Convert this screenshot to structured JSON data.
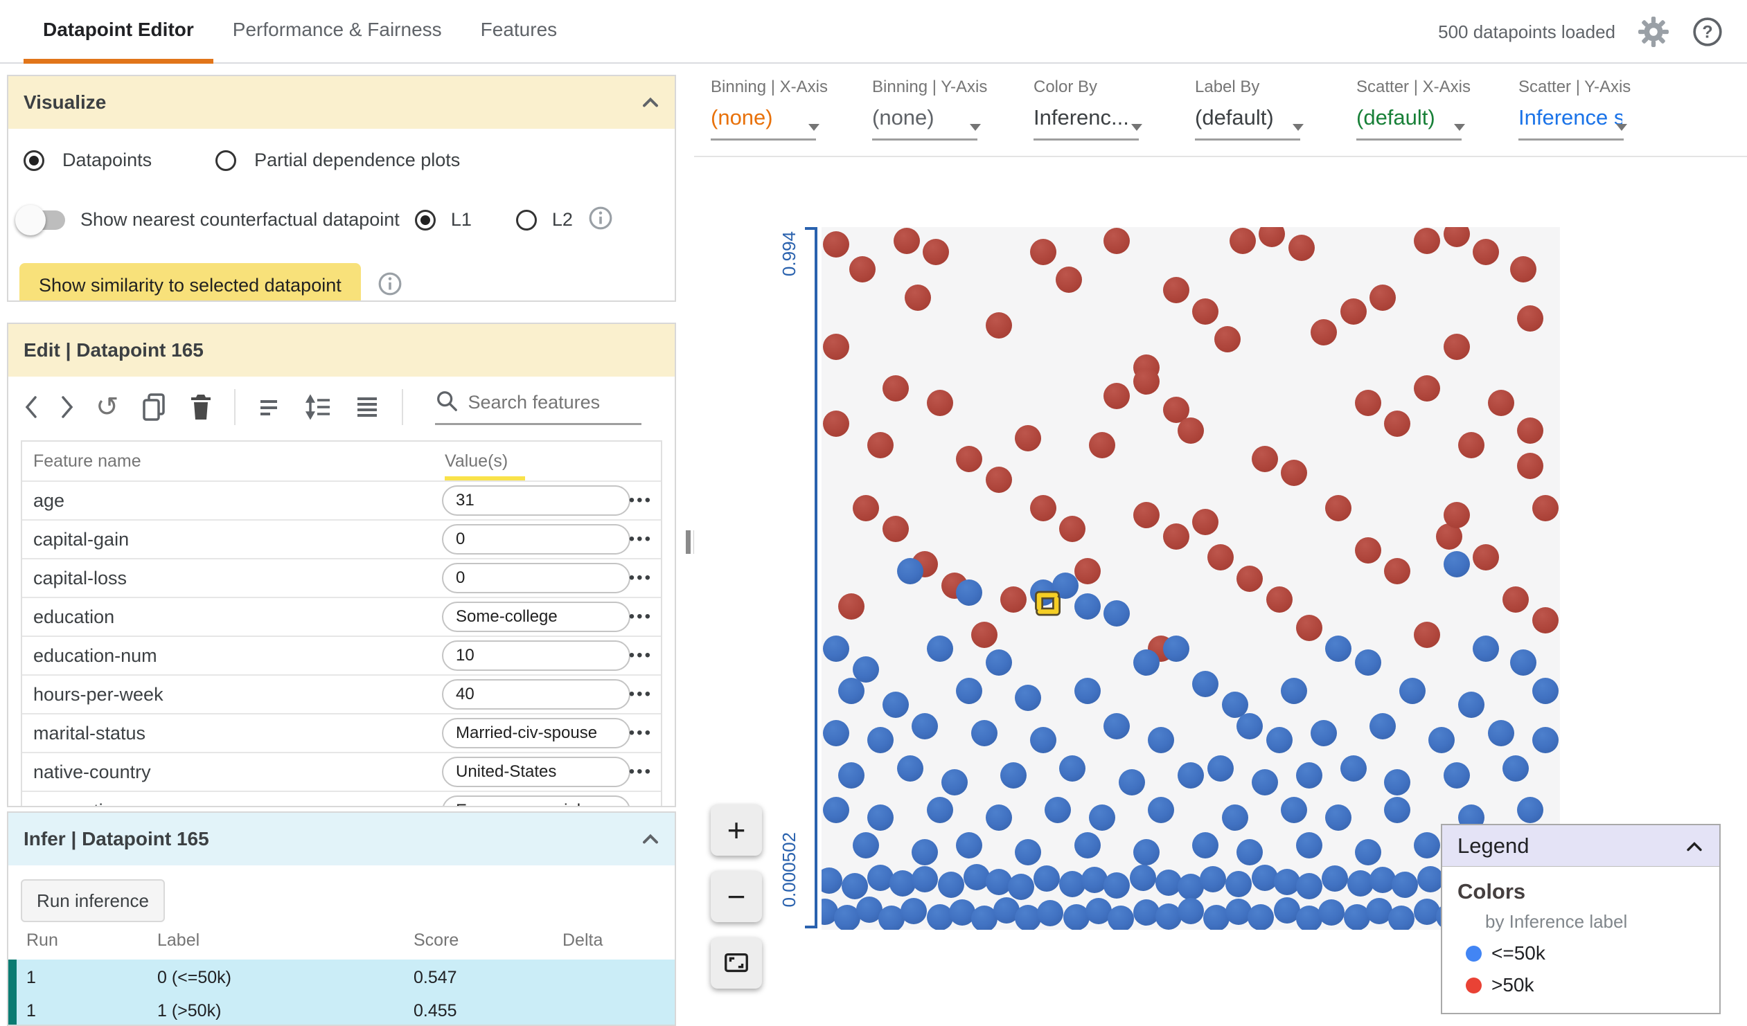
{
  "header": {
    "tabs": [
      "Datapoint Editor",
      "Performance & Fairness",
      "Features"
    ],
    "status": "500 datapoints loaded",
    "accent_color": "#E1751A"
  },
  "visualize": {
    "title": "Visualize",
    "radio_datapoints": "Datapoints",
    "radio_pdp": "Partial dependence plots",
    "toggle_label": "Show nearest counterfactual datapoint",
    "l1": "L1",
    "l2": "L2",
    "similarity_button": "Show similarity to selected datapoint"
  },
  "edit": {
    "title": "Edit | Datapoint 165",
    "search_placeholder": "Search features",
    "col_feature": "Feature name",
    "col_values": "Value(s)",
    "features": [
      {
        "name": "age",
        "value": "31"
      },
      {
        "name": "capital-gain",
        "value": "0"
      },
      {
        "name": "capital-loss",
        "value": "0"
      },
      {
        "name": "education",
        "value": "Some-college"
      },
      {
        "name": "education-num",
        "value": "10"
      },
      {
        "name": "hours-per-week",
        "value": "40"
      },
      {
        "name": "marital-status",
        "value": "Married-civ-spouse"
      },
      {
        "name": "native-country",
        "value": "United-States"
      },
      {
        "name": "occupation",
        "value": "Exec-managerial"
      }
    ]
  },
  "infer": {
    "title": "Infer | Datapoint 165",
    "run_button": "Run inference",
    "columns": [
      "Run",
      "Label",
      "Score",
      "Delta"
    ],
    "rows": [
      [
        "1",
        "0 (<=50k)",
        "0.547",
        ""
      ],
      [
        "1",
        "1 (>50k)",
        "0.455",
        ""
      ]
    ],
    "row_bg": "#CBEDF7",
    "row_bar": "#0A7B72"
  },
  "controls": [
    {
      "label": "Binning | X-Axis",
      "value": "(none)",
      "color": "#E8710A"
    },
    {
      "label": "Binning | Y-Axis",
      "value": "(none)",
      "color": "#5F6368"
    },
    {
      "label": "Color By",
      "value": "Inferenc...",
      "color": "#3C4043"
    },
    {
      "label": "Label By",
      "value": "(default)",
      "color": "#3C4043"
    },
    {
      "label": "Scatter | X-Axis",
      "value": "(default)",
      "color": "#188038"
    },
    {
      "label": "Scatter | Y-Axis",
      "value": "Inference s",
      "color": "#1A73E8"
    }
  ],
  "zoom": {
    "in_label": "+",
    "out_label": "−"
  },
  "legend": {
    "title": "Legend",
    "section": "Colors",
    "subtitle": "by Inference label",
    "items": [
      {
        "label": "<=50k",
        "color": "#4285F4"
      },
      {
        "label": ">50k",
        "color": "#E94235"
      }
    ]
  },
  "chart_data": {
    "type": "scatter",
    "y_axis": {
      "top": "0.994",
      "bottom": "0.000502"
    },
    "plot_bg": "#F5F5F6",
    "axis_color": "#2A62AE",
    "selected_point": {
      "x_pct": 30.6,
      "y_pct": 53.7
    },
    "series": [
      {
        "name": ">50k",
        "cls": "dot-red",
        "color": "#B0473D",
        "points": [
          [
            2,
            2.5
          ],
          [
            5.5,
            6
          ],
          [
            11.5,
            2
          ],
          [
            15.5,
            3.5
          ],
          [
            30,
            3.5
          ],
          [
            33.5,
            7.5
          ],
          [
            40,
            2
          ],
          [
            57,
            2
          ],
          [
            61,
            1
          ],
          [
            65,
            3
          ],
          [
            82,
            2
          ],
          [
            86,
            1
          ],
          [
            90,
            3.5
          ],
          [
            95,
            6
          ],
          [
            13,
            10
          ],
          [
            24,
            14
          ],
          [
            48,
            9
          ],
          [
            52,
            12
          ],
          [
            55,
            16
          ],
          [
            72,
            12
          ],
          [
            76,
            10
          ],
          [
            96,
            13
          ],
          [
            2,
            17
          ],
          [
            44,
            20
          ],
          [
            68,
            15
          ],
          [
            86,
            17
          ],
          [
            8,
            31
          ],
          [
            10,
            23
          ],
          [
            16,
            25
          ],
          [
            38,
            31
          ],
          [
            40,
            24
          ],
          [
            44,
            22
          ],
          [
            48,
            26
          ],
          [
            2,
            28
          ],
          [
            28,
            30
          ],
          [
            50,
            29
          ],
          [
            74,
            25
          ],
          [
            78,
            28
          ],
          [
            82,
            23
          ],
          [
            88,
            31
          ],
          [
            92,
            25
          ],
          [
            96,
            29
          ],
          [
            20,
            33
          ],
          [
            24,
            36
          ],
          [
            60,
            33
          ],
          [
            64,
            35
          ],
          [
            96,
            34
          ],
          [
            6,
            40
          ],
          [
            10,
            43
          ],
          [
            30,
            40
          ],
          [
            34,
            43
          ],
          [
            44,
            41
          ],
          [
            48,
            44
          ],
          [
            52,
            42
          ],
          [
            70,
            40
          ],
          [
            85,
            44
          ],
          [
            86,
            41
          ],
          [
            98,
            40
          ],
          [
            14,
            48
          ],
          [
            18,
            51
          ],
          [
            36,
            49
          ],
          [
            54,
            47
          ],
          [
            58,
            50
          ],
          [
            74,
            46
          ],
          [
            78,
            49
          ],
          [
            90,
            47
          ],
          [
            4,
            54
          ],
          [
            26,
            53
          ],
          [
            62,
            53
          ],
          [
            94,
            53
          ],
          [
            22,
            58
          ],
          [
            46,
            60
          ],
          [
            66,
            57
          ],
          [
            82,
            58
          ],
          [
            98,
            56
          ]
        ]
      },
      {
        "name": "<=50k",
        "cls": "dot-blue",
        "color": "#4172C2",
        "points": [
          [
            12,
            49
          ],
          [
            20,
            52
          ],
          [
            30,
            52
          ],
          [
            33,
            51
          ],
          [
            36,
            54
          ],
          [
            40,
            55
          ],
          [
            86,
            48
          ],
          [
            2,
            60
          ],
          [
            6,
            63
          ],
          [
            16,
            60
          ],
          [
            24,
            62
          ],
          [
            44,
            62
          ],
          [
            48,
            60
          ],
          [
            70,
            60
          ],
          [
            74,
            62
          ],
          [
            90,
            60
          ],
          [
            95,
            62
          ],
          [
            4,
            66
          ],
          [
            10,
            68
          ],
          [
            20,
            66
          ],
          [
            28,
            67
          ],
          [
            36,
            66
          ],
          [
            52,
            65
          ],
          [
            56,
            68
          ],
          [
            64,
            66
          ],
          [
            80,
            66
          ],
          [
            88,
            68
          ],
          [
            98,
            66
          ],
          [
            2,
            72
          ],
          [
            8,
            73
          ],
          [
            14,
            71
          ],
          [
            22,
            72
          ],
          [
            30,
            73
          ],
          [
            40,
            71
          ],
          [
            46,
            73
          ],
          [
            58,
            71
          ],
          [
            62,
            73
          ],
          [
            68,
            72
          ],
          [
            76,
            71
          ],
          [
            84,
            73
          ],
          [
            92,
            72
          ],
          [
            98,
            73
          ],
          [
            4,
            78
          ],
          [
            12,
            77
          ],
          [
            18,
            79
          ],
          [
            26,
            78
          ],
          [
            34,
            77
          ],
          [
            42,
            79
          ],
          [
            50,
            78
          ],
          [
            54,
            77
          ],
          [
            60,
            79
          ],
          [
            66,
            78
          ],
          [
            72,
            77
          ],
          [
            78,
            79
          ],
          [
            86,
            78
          ],
          [
            94,
            77
          ],
          [
            2,
            83
          ],
          [
            8,
            84
          ],
          [
            16,
            83
          ],
          [
            24,
            84
          ],
          [
            32,
            83
          ],
          [
            38,
            84
          ],
          [
            46,
            83
          ],
          [
            56,
            84
          ],
          [
            64,
            83
          ],
          [
            70,
            84
          ],
          [
            78,
            83
          ],
          [
            88,
            84
          ],
          [
            96,
            83
          ],
          [
            6,
            88
          ],
          [
            14,
            89
          ],
          [
            20,
            88
          ],
          [
            28,
            89
          ],
          [
            36,
            88
          ],
          [
            44,
            89
          ],
          [
            52,
            88
          ],
          [
            58,
            89
          ],
          [
            66,
            88
          ],
          [
            74,
            89
          ],
          [
            82,
            88
          ],
          [
            90,
            89
          ],
          [
            98,
            88
          ],
          [
            1,
            93
          ],
          [
            4.5,
            93.8
          ],
          [
            8,
            92.6
          ],
          [
            11,
            93.4
          ],
          [
            14,
            92.8
          ],
          [
            17.5,
            93.6
          ],
          [
            21,
            92.5
          ],
          [
            24,
            93.2
          ],
          [
            27,
            93.9
          ],
          [
            30.5,
            92.7
          ],
          [
            34,
            93.5
          ],
          [
            37,
            92.9
          ],
          [
            40,
            93.7
          ],
          [
            43.5,
            92.6
          ],
          [
            47,
            93.3
          ],
          [
            50,
            93.9
          ],
          [
            53,
            92.8
          ],
          [
            56.5,
            93.5
          ],
          [
            60,
            92.6
          ],
          [
            63,
            93.2
          ],
          [
            66,
            93.8
          ],
          [
            69.5,
            92.7
          ],
          [
            73,
            93.4
          ],
          [
            76,
            92.9
          ],
          [
            79,
            93.6
          ],
          [
            82.5,
            92.8
          ],
          [
            86,
            93.3
          ],
          [
            89,
            93.9
          ],
          [
            92,
            92.7
          ],
          [
            95.5,
            93.4
          ],
          [
            99,
            93
          ],
          [
            0.5,
            97.4
          ],
          [
            3.5,
            98.3
          ],
          [
            6.5,
            97.1
          ],
          [
            9.5,
            98.4
          ],
          [
            12.5,
            97.3
          ],
          [
            16,
            98.2
          ],
          [
            19,
            97.5
          ],
          [
            22,
            98.4
          ],
          [
            25,
            97.2
          ],
          [
            28,
            98.3
          ],
          [
            31,
            97.6
          ],
          [
            34.5,
            98.2
          ],
          [
            37.5,
            97.3
          ],
          [
            40.5,
            98.4
          ],
          [
            44,
            97.5
          ],
          [
            47,
            98.1
          ],
          [
            50,
            97.3
          ],
          [
            53.5,
            98.3
          ],
          [
            56.5,
            97.4
          ],
          [
            59.5,
            98.2
          ],
          [
            63,
            97.2
          ],
          [
            66,
            98.4
          ],
          [
            69,
            97.5
          ],
          [
            72.5,
            98.2
          ],
          [
            75.5,
            97.3
          ],
          [
            78.5,
            98.4
          ],
          [
            82,
            97.4
          ],
          [
            85,
            98.1
          ],
          [
            88,
            97.5
          ],
          [
            91.5,
            98.3
          ],
          [
            94.5,
            97.2
          ],
          [
            97.5,
            98.2
          ],
          [
            100,
            97.6
          ]
        ]
      }
    ]
  }
}
